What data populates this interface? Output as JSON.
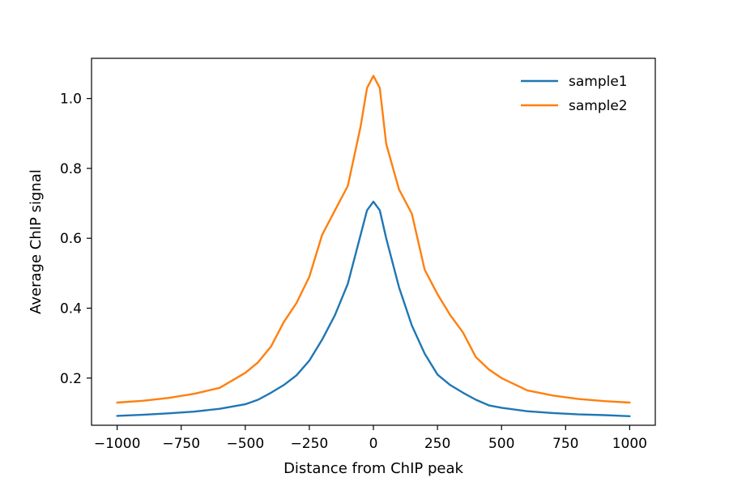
{
  "chart_data": {
    "type": "line",
    "title": "",
    "xlabel": "Distance from ChIP peak",
    "ylabel": "Average ChIP signal",
    "xlim": [
      -1100,
      1100
    ],
    "ylim": [
      0.065,
      1.115
    ],
    "xticks": [
      -1000,
      -750,
      -500,
      -250,
      0,
      250,
      500,
      750,
      1000
    ],
    "xtick_labels": [
      "−1000",
      "−750",
      "−500",
      "−250",
      "0",
      "250",
      "500",
      "750",
      "1000"
    ],
    "yticks": [
      0.2,
      0.4,
      0.6,
      0.8,
      1.0
    ],
    "ytick_labels": [
      "0.2",
      "0.4",
      "0.6",
      "0.8",
      "1.0"
    ],
    "grid": false,
    "legend_position": "top-right",
    "series": [
      {
        "name": "sample1",
        "color": "#1f77b4",
        "x": [
          -1000,
          -900,
          -800,
          -700,
          -600,
          -500,
          -450,
          -400,
          -350,
          -300,
          -250,
          -200,
          -150,
          -100,
          -50,
          -25,
          0,
          25,
          50,
          100,
          150,
          200,
          250,
          300,
          350,
          400,
          450,
          500,
          600,
          700,
          800,
          900,
          1000
        ],
        "y": [
          0.092,
          0.095,
          0.099,
          0.104,
          0.112,
          0.125,
          0.138,
          0.158,
          0.18,
          0.208,
          0.25,
          0.31,
          0.38,
          0.47,
          0.61,
          0.68,
          0.705,
          0.68,
          0.6,
          0.46,
          0.35,
          0.27,
          0.21,
          0.18,
          0.158,
          0.138,
          0.122,
          0.115,
          0.105,
          0.1,
          0.096,
          0.094,
          0.091
        ]
      },
      {
        "name": "sample2",
        "color": "#ff7f0e",
        "x": [
          -1000,
          -900,
          -800,
          -700,
          -600,
          -500,
          -450,
          -400,
          -350,
          -300,
          -250,
          -200,
          -150,
          -100,
          -50,
          -25,
          0,
          25,
          50,
          100,
          150,
          200,
          250,
          300,
          350,
          400,
          450,
          500,
          600,
          700,
          800,
          900,
          1000
        ],
        "y": [
          0.13,
          0.135,
          0.143,
          0.155,
          0.172,
          0.215,
          0.245,
          0.29,
          0.36,
          0.415,
          0.49,
          0.61,
          0.68,
          0.75,
          0.92,
          1.03,
          1.065,
          1.03,
          0.87,
          0.74,
          0.67,
          0.51,
          0.44,
          0.38,
          0.33,
          0.26,
          0.225,
          0.2,
          0.165,
          0.15,
          0.14,
          0.134,
          0.13
        ]
      }
    ]
  }
}
